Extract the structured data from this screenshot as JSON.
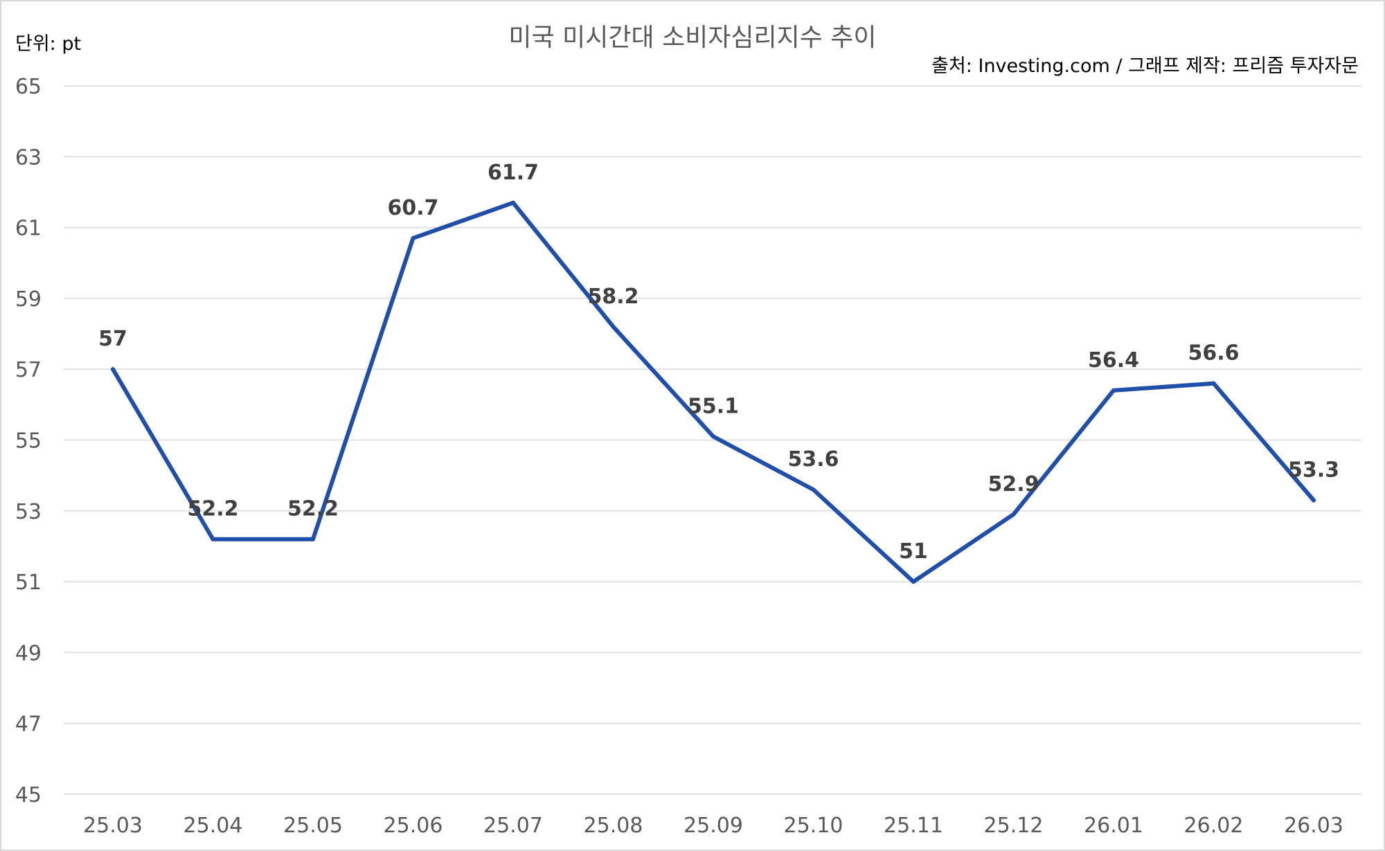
{
  "chart_data": {
    "type": "line",
    "title": "미국 미시간대 소비자심리지수 추이",
    "unit_label": "단위: pt",
    "source": "출처: Investing.com / 그래프 제작: 프리즘 투자자문",
    "categories": [
      "25.03",
      "25.04",
      "25.05",
      "25.06",
      "25.07",
      "25.08",
      "25.09",
      "25.10",
      "25.11",
      "25.12",
      "26.01",
      "26.02",
      "26.03"
    ],
    "series": [
      {
        "values": [
          57,
          52.2,
          52.2,
          60.7,
          61.7,
          58.2,
          55.1,
          53.6,
          51,
          52.9,
          56.4,
          56.6,
          53.3
        ],
        "labels": [
          "57",
          "52.2",
          "52.2",
          "60.7",
          "61.7",
          "58.2",
          "55.1",
          "53.6",
          "51",
          "52.9",
          "56.4",
          "56.6",
          "53.3"
        ]
      }
    ],
    "ylim": [
      45,
      65
    ],
    "yticks": [
      45,
      47,
      49,
      51,
      53,
      55,
      57,
      59,
      61,
      63,
      65
    ],
    "ytick_labels": [
      "45",
      "47",
      "49",
      "51",
      "53",
      "55",
      "57",
      "59",
      "61",
      "63",
      "65"
    ],
    "grid": true,
    "legend": "none",
    "colors": {
      "series": "#1f4eab",
      "grid": "#d9d9d9",
      "label": "#404040",
      "axis_text": "#595959"
    }
  }
}
